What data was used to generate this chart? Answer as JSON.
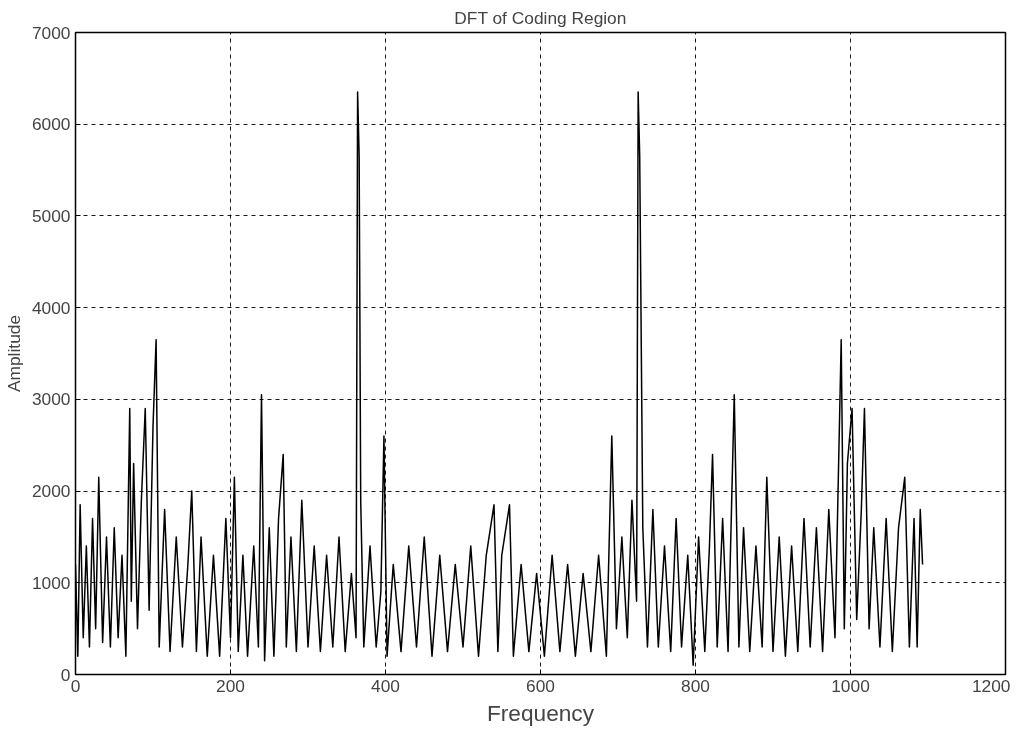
{
  "chart_data": {
    "type": "line",
    "title": "DFT of Coding Region",
    "xlabel": "Frequency",
    "ylabel": "Amplitude",
    "xlim": [
      0,
      1200
    ],
    "ylim": [
      0,
      7000
    ],
    "xticks": [
      0,
      200,
      400,
      600,
      800,
      1000,
      1200
    ],
    "yticks": [
      0,
      1000,
      2000,
      3000,
      4000,
      5000,
      6000,
      7000
    ],
    "grid": true,
    "line_style": "solid",
    "marker": "none",
    "series": [
      {
        "color": "#000000",
        "x": [
          0,
          3,
          6,
          10,
          14,
          18,
          22,
          26,
          30,
          35,
          40,
          45,
          50,
          55,
          60,
          65,
          70,
          72,
          75,
          80,
          85,
          90,
          95,
          100,
          104,
          108,
          115,
          122,
          130,
          138,
          145,
          150,
          156,
          162,
          170,
          178,
          186,
          194,
          200,
          205,
          210,
          216,
          222,
          230,
          236,
          240,
          244,
          250,
          256,
          262,
          268,
          272,
          278,
          285,
          292,
          300,
          308,
          316,
          324,
          332,
          340,
          348,
          356,
          362,
          364,
          366,
          368,
          372,
          380,
          388,
          394,
          398,
          402,
          410,
          420,
          430,
          440,
          450,
          460,
          470,
          480,
          490,
          500,
          510,
          520,
          530,
          540,
          545,
          550,
          560,
          565,
          575,
          585,
          595,
          605,
          615,
          625,
          635,
          645,
          655,
          665,
          675,
          685,
          692,
          698,
          705,
          712,
          718,
          724,
          726,
          728,
          732,
          738,
          745,
          752,
          760,
          768,
          775,
          782,
          790,
          797,
          804,
          812,
          818,
          822,
          828,
          835,
          842,
          850,
          856,
          862,
          870,
          878,
          886,
          892,
          900,
          908,
          916,
          924,
          932,
          940,
          948,
          956,
          964,
          972,
          980,
          988,
          992,
          996,
          1002,
          1008,
          1014,
          1018,
          1024,
          1030,
          1038,
          1046,
          1054,
          1062,
          1070,
          1076,
          1082,
          1086,
          1090,
          1093
        ],
        "values": [
          1200,
          200,
          1850,
          400,
          1400,
          300,
          1700,
          500,
          2150,
          350,
          1500,
          300,
          1600,
          400,
          1300,
          200,
          2900,
          800,
          2300,
          500,
          1900,
          2900,
          700,
          2700,
          3650,
          300,
          1800,
          250,
          1500,
          300,
          1200,
          2000,
          250,
          1500,
          200,
          1300,
          200,
          1700,
          400,
          2150,
          250,
          1300,
          200,
          1400,
          300,
          3050,
          150,
          1600,
          200,
          1700,
          2400,
          300,
          1500,
          250,
          1900,
          300,
          1400,
          250,
          1300,
          300,
          1500,
          250,
          1100,
          400,
          6350,
          5650,
          1900,
          300,
          1400,
          300,
          900,
          2600,
          200,
          1200,
          250,
          1400,
          300,
          1500,
          200,
          1300,
          250,
          1200,
          300,
          1400,
          200,
          1300,
          1850,
          250,
          1300,
          1850,
          200,
          1200,
          250,
          1100,
          200,
          1300,
          250,
          1200,
          200,
          1100,
          250,
          1300,
          200,
          2600,
          500,
          1500,
          400,
          1900,
          800,
          6350,
          5650,
          1600,
          300,
          1800,
          300,
          1400,
          250,
          1700,
          300,
          1300,
          100,
          1500,
          250,
          1400,
          2400,
          300,
          1700,
          250,
          3050,
          300,
          1600,
          250,
          1400,
          300,
          2150,
          250,
          1500,
          200,
          1400,
          250,
          1700,
          300,
          1600,
          250,
          1800,
          400,
          3650,
          500,
          2300,
          2900,
          600,
          1800,
          2900,
          500,
          1600,
          300,
          1700,
          250,
          1600,
          2150,
          300,
          1700,
          300,
          1800,
          1200
        ]
      }
    ]
  }
}
